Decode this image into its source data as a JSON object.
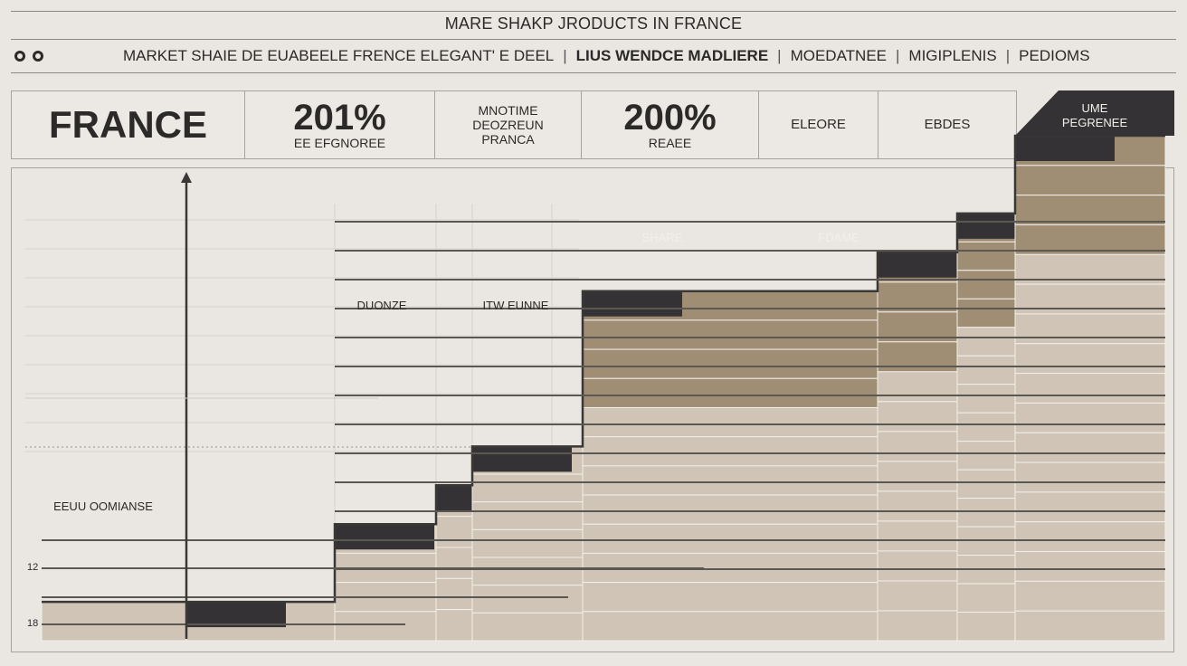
{
  "header": {
    "title": "MARE SHAKP JRODUCTS IN FRANCE",
    "subtitle_items": [
      "MARKET SHAIE DE EUABEELE FRENCE ELEGANT' E DEEL",
      "LIUS WENDCE MADLIERE",
      "MOEDATNEE",
      "MIGIPLENIS",
      "PEDIOMS"
    ],
    "icons": [
      "circle-icon",
      "heart-icon"
    ]
  },
  "stats": {
    "country": "FRANCE",
    "stat1_value": "201%",
    "stat1_label": "EE EFGNOREE",
    "stat2_lines": [
      "MNOTIME",
      "DEOZREUN",
      "PRANCA"
    ],
    "stat3_value": "200%",
    "stat3_label": "REAEE",
    "stat4_label": "ELEORE",
    "stat5_label": "EBDES",
    "flag_lines": [
      "UME",
      "PEGRENEE"
    ]
  },
  "chart_data": {
    "type": "area",
    "title": "MARE SHAKP JRODUCTS IN FRANCE",
    "annotations": [
      "DUONZE",
      "ITW EUNNE",
      "EEUU OOMIANSE",
      "SHARE",
      "FDAME"
    ],
    "tick_labels": [
      "12",
      "18"
    ],
    "steps": [
      {
        "x": 0,
        "level": 1
      },
      {
        "x": 1,
        "level": 1
      },
      {
        "x": 2,
        "level": 3
      },
      {
        "x": 3,
        "level": 4
      },
      {
        "x": 4,
        "level": 5
      },
      {
        "x": 5,
        "level": 9
      },
      {
        "x": 6,
        "level": 10
      },
      {
        "x": 7,
        "level": 11
      },
      {
        "x": 8,
        "level": 13
      }
    ],
    "colors": {
      "tan_dark": "#9f8d74",
      "tan_light": "#cfc4b5",
      "dark": "#343234",
      "line": "#3a3836"
    }
  }
}
